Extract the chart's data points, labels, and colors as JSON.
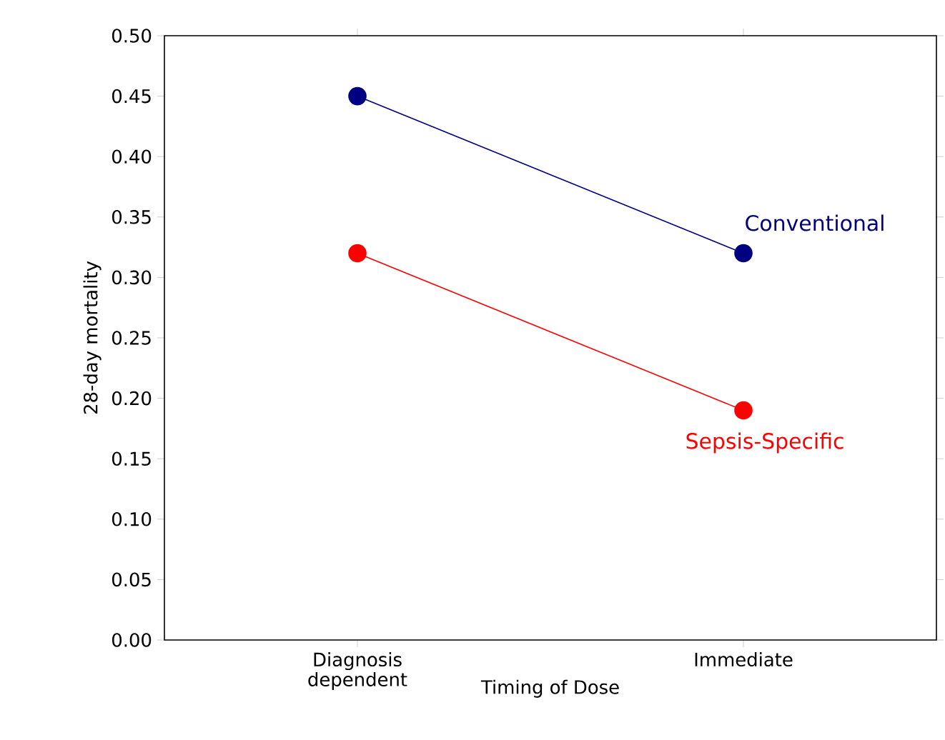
{
  "chart_data": {
    "type": "line",
    "xlabel": "Timing of Dose",
    "ylabel": "28-day mortality",
    "categories": [
      "Diagnosis dependent",
      "Immediate"
    ],
    "series": [
      {
        "name": "Conventional",
        "color": "#000080",
        "values": [
          0.45,
          0.32
        ]
      },
      {
        "name": "Sepsis-Specific",
        "color": "#ff0000",
        "values": [
          0.32,
          0.19
        ]
      }
    ],
    "ylim": [
      0,
      0.5
    ],
    "yticks": [
      {
        "value": 0,
        "label": "0.00"
      },
      {
        "value": 0.05,
        "label": "0.05"
      },
      {
        "value": 0.1,
        "label": "0.10"
      },
      {
        "value": 0.15,
        "label": "0.15"
      },
      {
        "value": 0.2,
        "label": "0.20"
      },
      {
        "value": 0.25,
        "label": "0.25"
      },
      {
        "value": 0.3,
        "label": "0.30"
      },
      {
        "value": 0.35,
        "label": "0.35"
      },
      {
        "value": 0.4,
        "label": "0.40"
      },
      {
        "value": 0.45,
        "label": "0.45"
      },
      {
        "value": 0.5,
        "label": "0.50"
      }
    ],
    "marker": "circle",
    "line_style": "solid",
    "grid": false,
    "legend": false
  }
}
